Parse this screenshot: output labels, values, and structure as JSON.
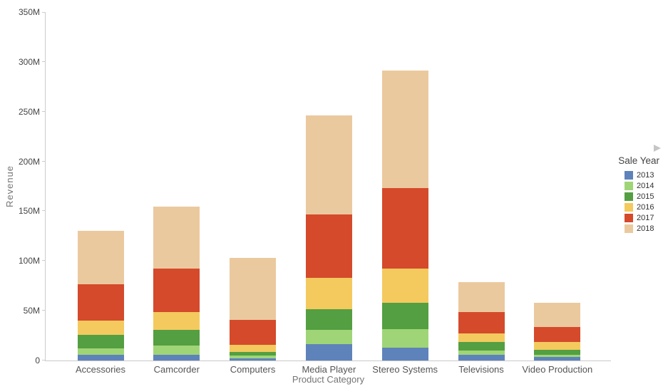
{
  "page": {
    "background": "#ffffff"
  },
  "icons": {
    "legend_scroll_arrow": "right-triangle"
  },
  "axes": {
    "y_tick_labels": [
      "0",
      "50M",
      "100M",
      "150M",
      "200M",
      "250M",
      "300M",
      "350M"
    ]
  },
  "chart_data": {
    "type": "bar",
    "stacked": true,
    "title": "",
    "xlabel": "Product Category",
    "ylabel": "Revenue",
    "unit": "M",
    "ylim": [
      0,
      350
    ],
    "grid": false,
    "legend_position": "right",
    "legend_title": "Sale Year",
    "categories": [
      "Accessories",
      "Camcorder",
      "Computers",
      "Media Player",
      "Stereo Systems",
      "Televisions",
      "Video Production"
    ],
    "series": [
      {
        "name": "2013",
        "color": "#5e83ba",
        "values": [
          5.5,
          6,
          2,
          16.5,
          13,
          6,
          3.5
        ]
      },
      {
        "name": "2014",
        "color": "#9fd576",
        "values": [
          7,
          9,
          3,
          14.5,
          18.5,
          4,
          2.5
        ]
      },
      {
        "name": "2015",
        "color": "#539f42",
        "values": [
          13,
          16,
          3.5,
          20.5,
          26.5,
          8.5,
          5
        ]
      },
      {
        "name": "2016",
        "color": "#f4ca5e",
        "values": [
          14.5,
          18,
          7.5,
          31.5,
          34.5,
          9,
          7.5
        ]
      },
      {
        "name": "2017",
        "color": "#d44a2b",
        "values": [
          36.5,
          43,
          24.5,
          63.5,
          81,
          21,
          15.5
        ]
      },
      {
        "name": "2018",
        "color": "#ebc99e",
        "values": [
          54,
          62.5,
          62.5,
          99.5,
          118,
          30,
          24
        ]
      }
    ],
    "stack_totals": [
      130.5,
      154.5,
      103,
      246,
      291.5,
      78.5,
      58
    ]
  }
}
